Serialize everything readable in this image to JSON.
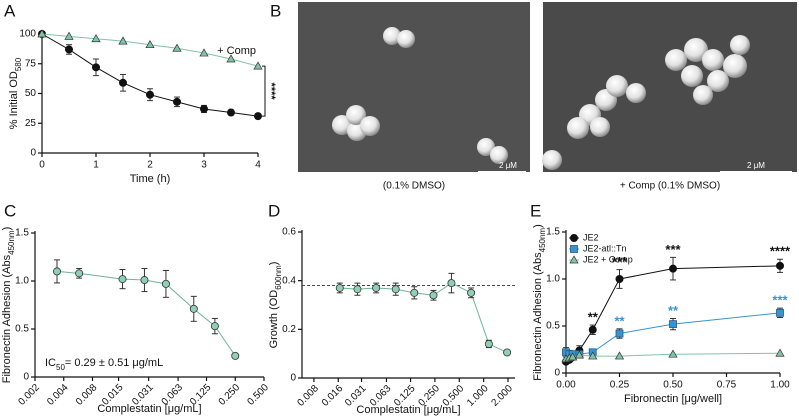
{
  "chart_data": [
    {
      "panel_label": "A",
      "type": "line",
      "xlabel": "Time (h)",
      "ylabel": {
        "text": "% Initial OD",
        "sub": "580"
      },
      "xlim": [
        0,
        4
      ],
      "xticks": [
        0,
        1,
        2,
        3,
        4
      ],
      "ylim": [
        0,
        100
      ],
      "yticks": [
        0,
        25,
        50,
        75,
        100
      ],
      "annotation": "****",
      "series": [
        {
          "color": "#111111",
          "marker": "circle",
          "x": [
            0,
            0.5,
            1,
            1.5,
            2,
            2.5,
            3,
            3.5,
            4
          ],
          "values": [
            100,
            87,
            72,
            59,
            49,
            43,
            37,
            34,
            31
          ],
          "errors": [
            0,
            4,
            7,
            7,
            5,
            4,
            3,
            2,
            1
          ]
        },
        {
          "name": "+ Comp",
          "color": "#7fc4a8",
          "marker": "triangle",
          "x": [
            0,
            0.5,
            1,
            1.5,
            2,
            2.5,
            3,
            3.5,
            4
          ],
          "values": [
            100,
            98,
            96,
            94,
            91,
            88,
            84,
            79,
            73
          ]
        }
      ]
    },
    {
      "panel_label": "C",
      "type": "line",
      "xscale": "log",
      "xlabel": "Complestatin [μg/mL]",
      "ylabel": {
        "text": "Fibronectin Adhesion (Abs",
        "sub": "450nm",
        "after": ")"
      },
      "xlim": [
        0.002,
        0.5
      ],
      "xticks": [
        0.002,
        0.004,
        0.008,
        0.015,
        0.031,
        0.063,
        0.125,
        {
          "value": 0.25,
          "label": "0.250"
        },
        {
          "value": 0.5,
          "label": "0.500"
        }
      ],
      "ylim": [
        0,
        1.5
      ],
      "yticks": [
        0,
        0.5,
        {
          "value": 1,
          "label": "1.0"
        },
        1.5
      ],
      "annotation": {
        "text": "IC",
        "sub": "50",
        "after": "= 0.29 ± 0.51 μg/mL"
      },
      "series": [
        {
          "color": "#8fd0b4",
          "marker": "circle",
          "x": [
            0.0034,
            0.0058,
            0.0165,
            0.028,
            0.047,
            0.092,
            0.153,
            0.25
          ],
          "values": [
            1.1,
            1.08,
            1.02,
            1.01,
            0.97,
            0.71,
            0.53,
            0.22
          ],
          "errors": [
            0.12,
            0.05,
            0.1,
            0.12,
            0.14,
            0.13,
            0.08,
            0.01
          ]
        }
      ]
    },
    {
      "panel_label": "D",
      "type": "line",
      "xscale": "log",
      "xlabel": "Complestatin [μg/mL]",
      "ylabel": {
        "text": "Growth (OD",
        "sub": "600nm",
        "after": ")"
      },
      "xlim": [
        0.0057,
        2.44
      ],
      "xticks": [
        0.008,
        0.016,
        0.031,
        0.063,
        0.125,
        {
          "value": 0.25,
          "label": "0.250"
        },
        {
          "value": 0.5,
          "label": "0.500"
        },
        {
          "value": 1,
          "label": "1.000"
        },
        {
          "value": 2,
          "label": "2.000"
        }
      ],
      "ylim": [
        0,
        0.6
      ],
      "yticks": [
        0,
        0.2,
        0.4,
        0.6
      ],
      "reference_line": 0.38,
      "series": [
        {
          "color": "#8fd0b4",
          "marker": "circle",
          "x": [
            0.0167,
            0.0276,
            0.047,
            0.082,
            0.139,
            0.24,
            0.4,
            0.7,
            1.16,
            1.95
          ],
          "values": [
            0.37,
            0.365,
            0.37,
            0.365,
            0.35,
            0.34,
            0.39,
            0.35,
            0.14,
            0.105
          ],
          "errors": [
            0.02,
            0.025,
            0.02,
            0.025,
            0.025,
            0.02,
            0.04,
            0.02,
            0.015,
            0.01
          ]
        }
      ]
    },
    {
      "panel_label": "E",
      "type": "line",
      "xlabel": "Fibronectin [μg/well]",
      "ylabel": {
        "text": "Fibronectin Adhesion (Abs",
        "sub": "450nm",
        "after": ")"
      },
      "xlim": [
        0,
        1
      ],
      "xticks": [
        {
          "value": 0,
          "label": "0.00"
        },
        {
          "value": 0.25,
          "label": "0.25"
        },
        {
          "value": 0.5,
          "label": "0.50"
        },
        {
          "value": 0.75,
          "label": "0.75"
        },
        {
          "value": 1,
          "label": "1.00"
        }
      ],
      "ylim": [
        0,
        1.5
      ],
      "yticks": [
        0,
        0.5,
        {
          "value": 1,
          "label": "1.0"
        },
        1.5
      ],
      "legend": "top-left",
      "series": [
        {
          "name": "JE2",
          "color": "#111111",
          "marker": "circle",
          "x": [
            0,
            0.0156,
            0.03125,
            0.0625,
            0.125,
            0.25,
            0.5,
            1
          ],
          "values": [
            0.12,
            0.14,
            0.17,
            0.24,
            0.46,
            1.0,
            1.11,
            1.14
          ],
          "errors": [
            0.02,
            0.02,
            0.03,
            0.05,
            0.05,
            0.1,
            0.12,
            0.07
          ],
          "sig_labels": [
            null,
            null,
            null,
            null,
            "**",
            "***",
            "***",
            "****"
          ]
        },
        {
          "name": "JE2-atl::Tn",
          "color": "#3a93d0",
          "marker": "square",
          "x": [
            0,
            0.0156,
            0.03125,
            0.0625,
            0.125,
            0.25,
            0.5,
            1
          ],
          "values": [
            0.22,
            0.2,
            0.2,
            0.2,
            0.22,
            0.42,
            0.52,
            0.64
          ],
          "errors": [
            0.05,
            0.04,
            0.03,
            0.03,
            0.03,
            0.05,
            0.06,
            0.05
          ],
          "sig_labels": [
            null,
            null,
            null,
            null,
            null,
            "**",
            "**",
            "***"
          ]
        },
        {
          "name": "JE2 + Comp",
          "color": "#7fc4a8",
          "marker": "triangle",
          "x": [
            0,
            0.0156,
            0.03125,
            0.0625,
            0.125,
            0.25,
            0.5,
            1
          ],
          "values": [
            0.15,
            0.16,
            0.17,
            0.19,
            0.18,
            0.18,
            0.2,
            0.21
          ]
        }
      ]
    }
  ],
  "panel_b": {
    "panel_label": "B",
    "images": [
      {
        "caption": "(0.1% DMSO)",
        "scale_bar": "2 μM"
      },
      {
        "caption": "+ Comp (0.1% DMSO)",
        "scale_bar": "2 μM"
      }
    ]
  }
}
